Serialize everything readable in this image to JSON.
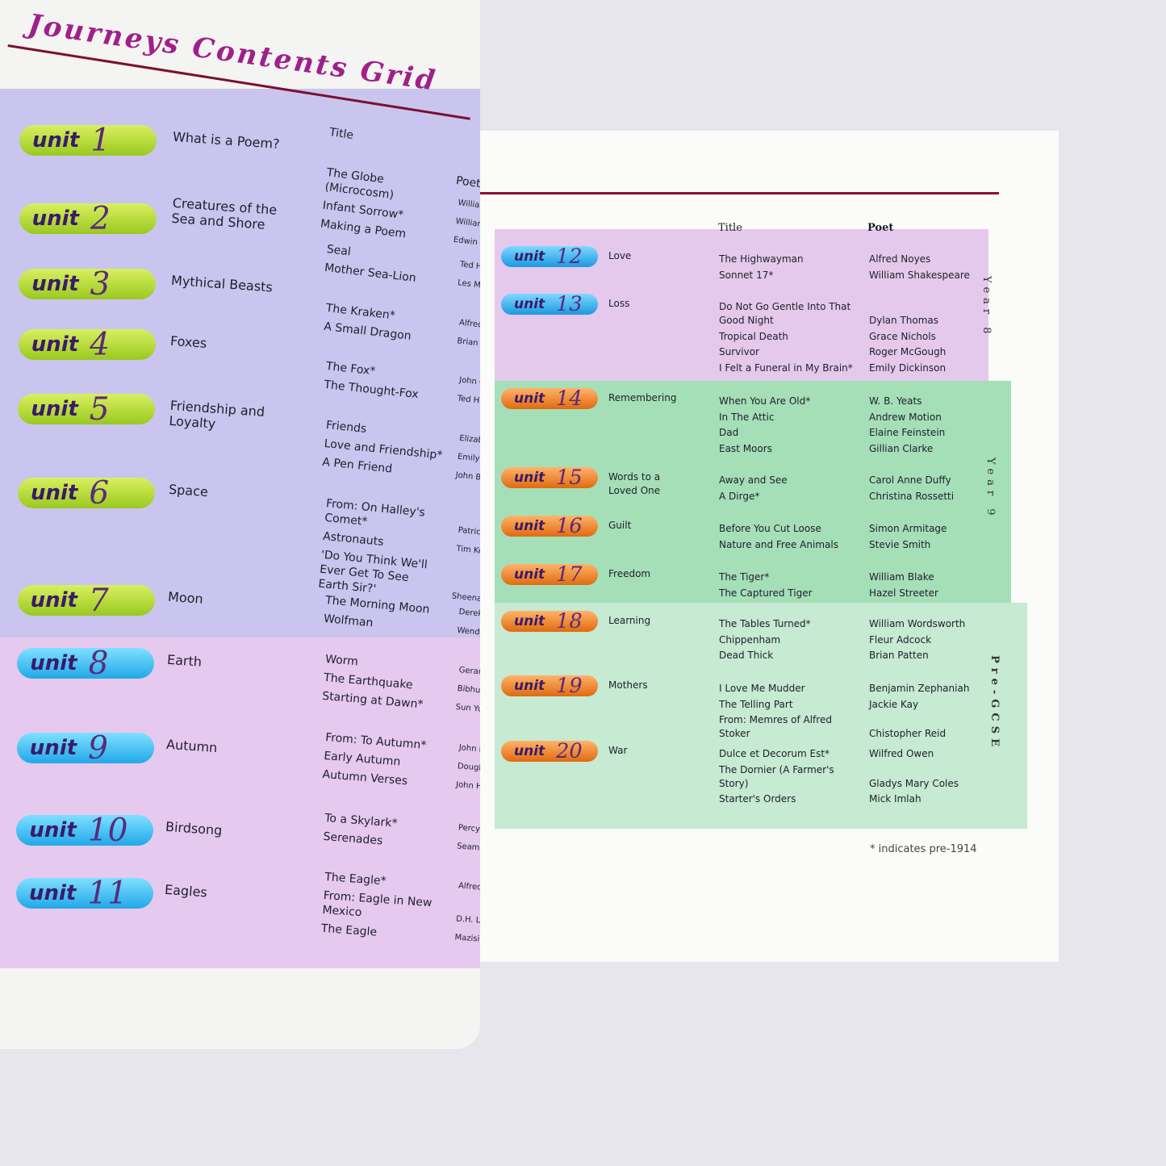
{
  "unit_label": "unit",
  "left_page": {
    "title": "Journeys Contents Grid",
    "title_header": "Title",
    "poet_header": "Poet",
    "units": [
      {
        "number": "1",
        "topic": "What is a Poem?",
        "titles": [
          "The Globe (Microcosm)",
          "Infant Sorrow*",
          "Making a Poem"
        ],
        "poets": [
          "William W",
          "William B",
          "Edwin Mu"
        ]
      },
      {
        "number": "2",
        "topic": "Creatures of the Sea and Shore",
        "titles": [
          "Seal",
          "Mother Sea-Lion"
        ],
        "poets": [
          "Ted Hughe",
          "Les Murr"
        ]
      },
      {
        "number": "3",
        "topic": "Mythical Beasts",
        "titles": [
          "The Kraken*",
          "A Small Dragon"
        ],
        "poets": [
          "Alfred, Lo",
          "Brian Pat"
        ]
      },
      {
        "number": "4",
        "topic": "Foxes",
        "titles": [
          "The Fox*",
          "The Thought-Fox"
        ],
        "poets": [
          "John Cla",
          "Ted Hughe"
        ]
      },
      {
        "number": "5",
        "topic": "Friendship and Loyalty",
        "titles": [
          "Friends",
          "Love and Friendship*",
          "A Pen Friend"
        ],
        "poets": [
          "Elizabeth",
          "Emily Bro",
          "John Burn"
        ]
      },
      {
        "number": "6",
        "topic": "Space",
        "titles": [
          "From: On Halley's Comet*",
          "Astronauts",
          "'Do You Think We'll Ever Get To See Earth Sir?'"
        ],
        "poets": [
          "Patrick Mo",
          "Tim Ken",
          "Sheenagh P"
        ]
      },
      {
        "number": "7",
        "topic": "Moon",
        "titles": [
          "The Morning Moon",
          "Wolfman"
        ],
        "poets": [
          "Derek Wa",
          "Wendy Co"
        ]
      },
      {
        "number": "8",
        "topic": "Earth",
        "titles": [
          "Worm",
          "The Earthquake",
          "Starting at Dawn*"
        ],
        "poets": [
          "Gerard M",
          "Bibhu Pad",
          "Sun Yu"
        ]
      },
      {
        "number": "9",
        "topic": "Autumn",
        "titles": [
          "From: To Autumn*",
          "Early Autumn",
          "Autumn Verses"
        ],
        "poets": [
          "John Kea",
          "Douglas",
          "John Hig"
        ]
      },
      {
        "number": "10",
        "topic": "Birdsong",
        "titles": [
          "To a Skylark*",
          "Serenades"
        ],
        "poets": [
          "Percy Bys",
          "Seamus H"
        ]
      },
      {
        "number": "11",
        "topic": "Eagles",
        "titles": [
          "The Eagle*",
          "From: Eagle in New Mexico",
          "The Eagle"
        ],
        "poets": [
          "Alfred, Lo",
          "D.H. Lawr",
          "Mazisi Ku"
        ]
      }
    ]
  },
  "right_page": {
    "title_header": "Title",
    "poet_header": "Poet",
    "units": [
      {
        "number": "12",
        "topic": "Love",
        "titles": [
          "The Highwayman",
          "Sonnet 17*"
        ],
        "poets": [
          "Alfred Noyes",
          "William Shakespeare"
        ]
      },
      {
        "number": "13",
        "topic": "Loss",
        "titles": [
          "Do Not Go Gentle Into That Good Night",
          "Tropical Death",
          "Survivor",
          "I Felt a Funeral in My Brain*"
        ],
        "poets": [
          "Dylan Thomas",
          "Grace Nichols",
          "Roger McGough",
          "Emily Dickinson"
        ]
      },
      {
        "number": "14",
        "topic": "Remembering",
        "titles": [
          "When You Are Old*",
          "In The Attic",
          "Dad",
          "East Moors"
        ],
        "poets": [
          "W. B. Yeats",
          "Andrew Motion",
          "Elaine Feinstein",
          "Gillian Clarke"
        ]
      },
      {
        "number": "15",
        "topic": "Words to a Loved One",
        "titles": [
          "Away and See",
          "A Dirge*"
        ],
        "poets": [
          "Carol Anne Duffy",
          "Christina Rossetti"
        ]
      },
      {
        "number": "16",
        "topic": "Guilt",
        "titles": [
          "Before You Cut Loose",
          "Nature and Free Animals"
        ],
        "poets": [
          "Simon Armitage",
          "Stevie Smith"
        ]
      },
      {
        "number": "17",
        "topic": "Freedom",
        "titles": [
          "The Tiger*",
          "The Captured Tiger"
        ],
        "poets": [
          "William Blake",
          "Hazel Streeter"
        ]
      },
      {
        "number": "18",
        "topic": "Learning",
        "titles": [
          "The Tables Turned*",
          "Chippenham",
          "Dead Thick"
        ],
        "poets": [
          "William Wordsworth",
          "Fleur Adcock",
          "Brian Patten"
        ]
      },
      {
        "number": "19",
        "topic": "Mothers",
        "titles": [
          "I Love Me Mudder",
          "The Telling Part",
          "From: Memres of Alfred Stoker"
        ],
        "poets": [
          "Benjamin Zephaniah",
          "Jackie Kay",
          "Chistopher Reid"
        ]
      },
      {
        "number": "20",
        "topic": "War",
        "titles": [
          "Dulce et Decorum Est*",
          "The Dornier (A Farmer's Story)",
          "Starter's Orders"
        ],
        "poets": [
          "Wilfred Owen",
          "Gladys Mary Coles",
          "Mick Imlah"
        ]
      }
    ],
    "year_labels": [
      "Year 8",
      "Year 9",
      "Pre-GCSE"
    ],
    "footnote": "* indicates pre-1914"
  }
}
